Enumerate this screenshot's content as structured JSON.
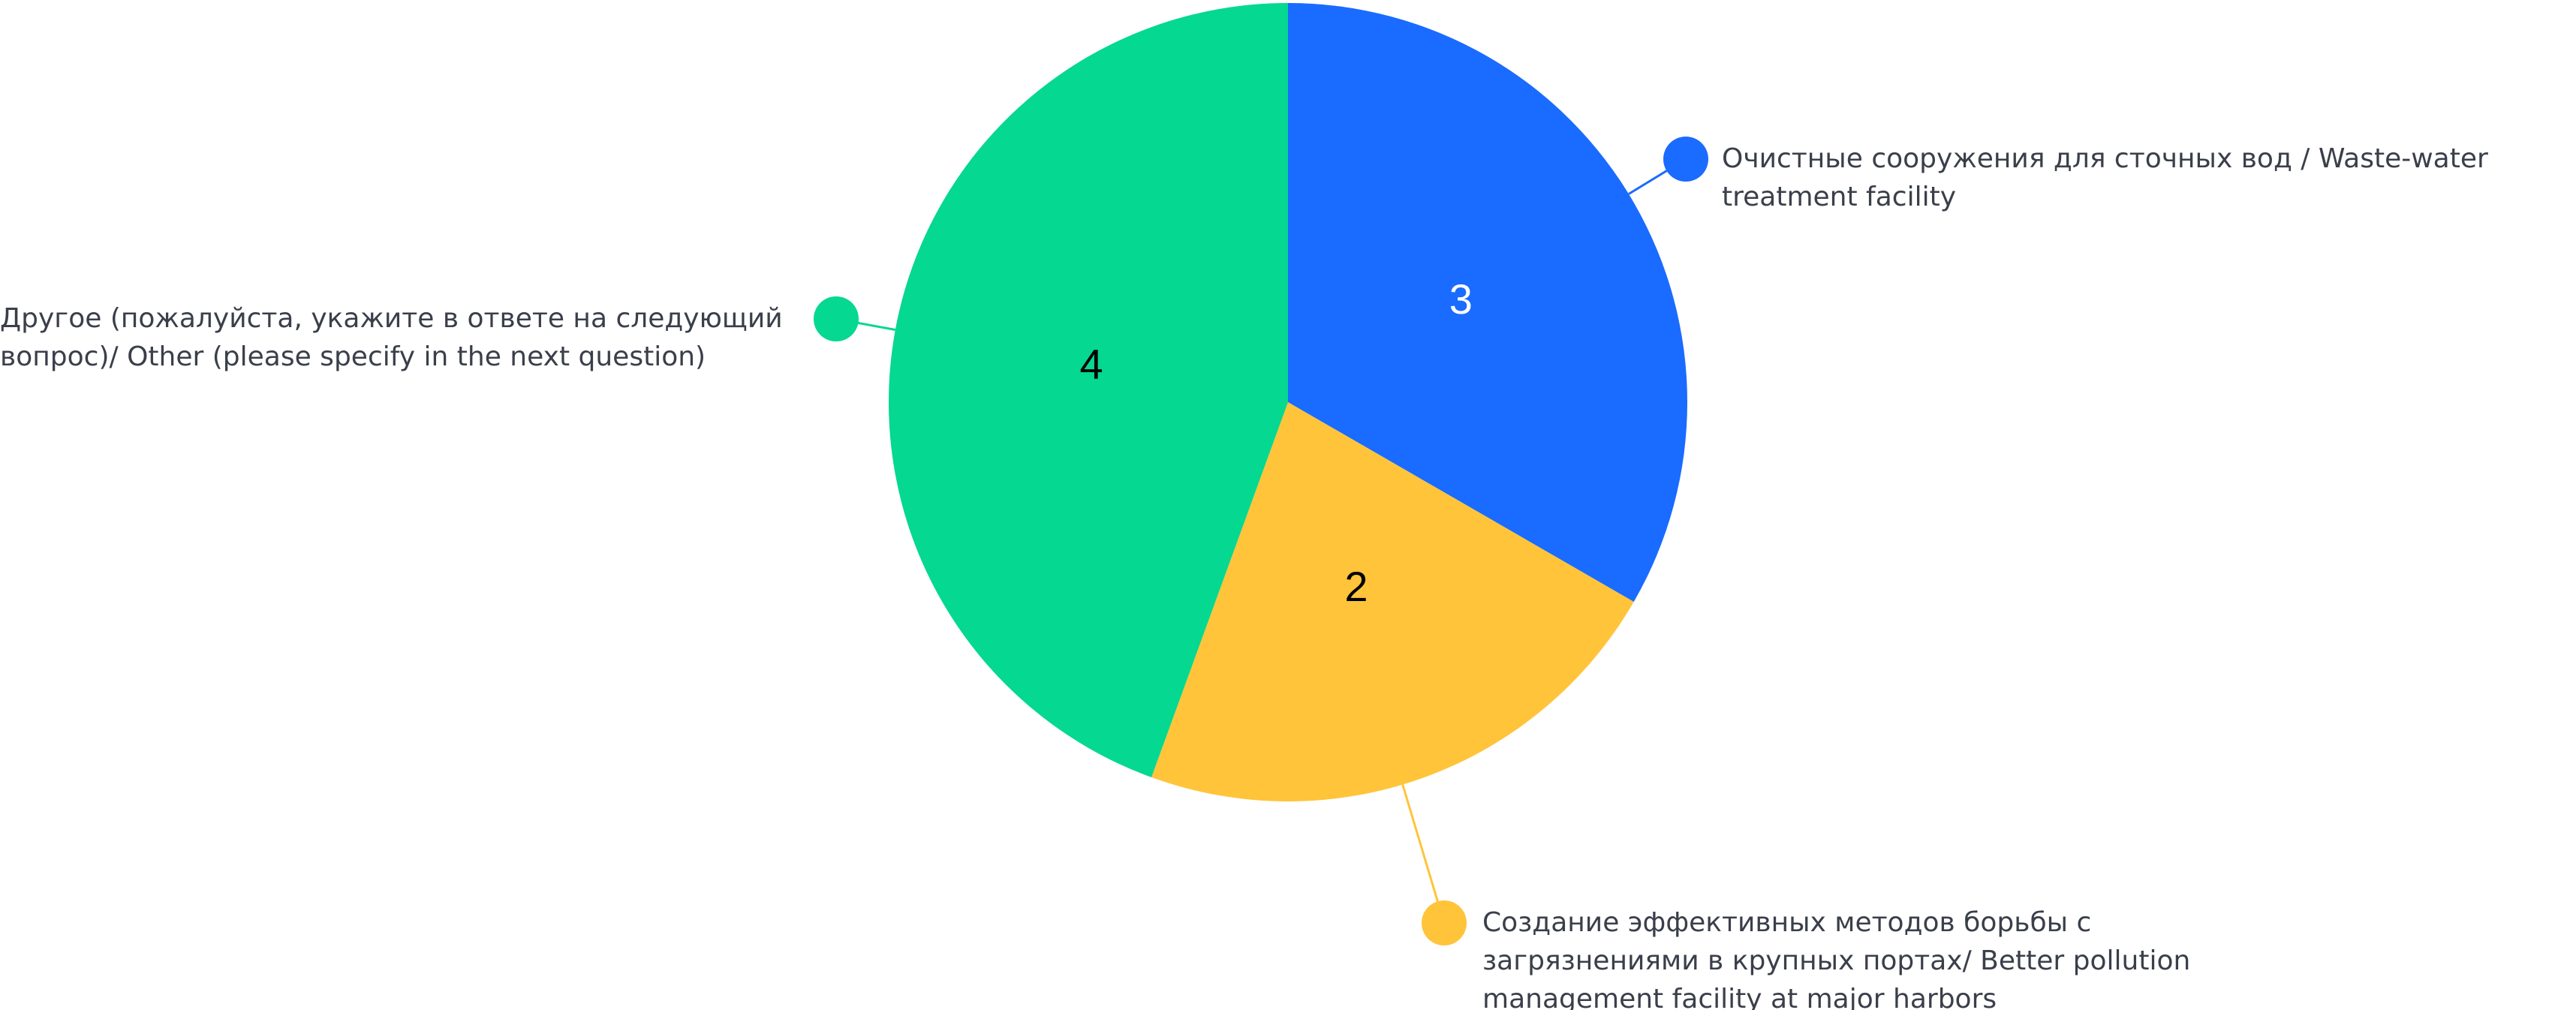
{
  "chart_data": {
    "type": "pie",
    "categories": [
      "Очистные сооружения для сточных вод / Waste-water treatment facility",
      "Создание эффективных методов борьбы с загрязнениями в крупных портах/ Better pollution management facility at major harbors",
      "Другое (пожалуйста, укажите в ответе на следующий вопрос)/ Other (please specify in the next question)"
    ],
    "values": [
      3,
      2,
      4
    ],
    "colors": [
      "#1a6bff",
      "#ffc43a",
      "#05d890"
    ],
    "value_label_colors": [
      "#ffffff",
      "#000000",
      "#000000"
    ]
  }
}
